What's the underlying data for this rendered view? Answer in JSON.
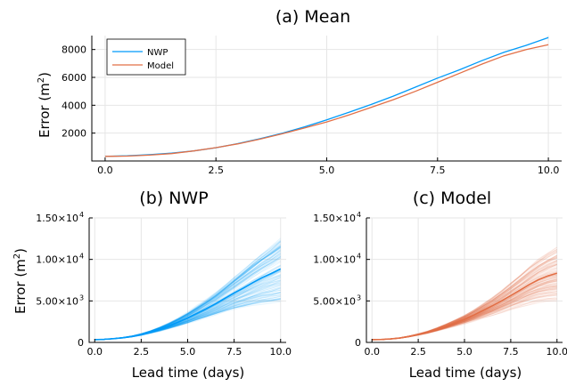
{
  "chart_data": [
    {
      "type": "line",
      "title": "(a) Mean",
      "xlabel": "",
      "ylabel": "Error (m2)",
      "ylabel_parts": {
        "text": "Error (m",
        "sup": "2",
        "close": ")"
      },
      "xlim": [
        -0.3,
        10.3
      ],
      "ylim": [
        0,
        9000
      ],
      "xticks": [
        "0.0",
        "2.5",
        "5.0",
        "7.5",
        "10.0"
      ],
      "xtick_values": [
        0,
        2.5,
        5,
        7.5,
        10
      ],
      "yticks": [
        "2000",
        "4000",
        "6000",
        "8000"
      ],
      "ytick_values": [
        2000,
        4000,
        6000,
        8000
      ],
      "grid": true,
      "legend_position": "top-left",
      "x": [
        0,
        0.5,
        1,
        1.5,
        2,
        2.5,
        3,
        3.5,
        4,
        4.5,
        5,
        5.5,
        6,
        6.5,
        7,
        7.5,
        8,
        8.5,
        9,
        9.5,
        10
      ],
      "series": [
        {
          "name": "NWP",
          "color": "#009af9",
          "values": [
            330,
            370,
            450,
            560,
            720,
            950,
            1250,
            1600,
            2000,
            2450,
            2950,
            3500,
            4050,
            4650,
            5300,
            5950,
            6550,
            7200,
            7800,
            8300,
            8850
          ]
        },
        {
          "name": "Model",
          "color": "#e26f46",
          "values": [
            330,
            350,
            420,
            530,
            720,
            960,
            1230,
            1570,
            1950,
            2370,
            2800,
            3300,
            3850,
            4400,
            5000,
            5650,
            6300,
            6950,
            7550,
            8000,
            8350
          ]
        }
      ]
    },
    {
      "type": "line",
      "title": "(b) NWP",
      "xlabel": "Lead time (days)",
      "ylabel": "Error (m2)",
      "ylabel_parts": {
        "text": "Error (m",
        "sup": "2",
        "close": ")"
      },
      "xlim": [
        -0.3,
        10.3
      ],
      "ylim": [
        0,
        15000
      ],
      "xticks": [
        "0.0",
        "2.5",
        "5.0",
        "7.5",
        "10.0"
      ],
      "xtick_values": [
        0,
        2.5,
        5,
        7.5,
        10
      ],
      "yticks": [
        {
          "value": 0,
          "text": "0",
          "exp": ""
        },
        {
          "value": 5000,
          "text": "5.00×10",
          "exp": "3"
        },
        {
          "value": 10000,
          "text": "1.00×10",
          "exp": "4"
        },
        {
          "value": 15000,
          "text": "1.50×10",
          "exp": "4"
        }
      ],
      "grid": true,
      "x": [
        0,
        0.5,
        1,
        1.5,
        2,
        2.5,
        3,
        3.5,
        4,
        4.5,
        5,
        5.5,
        6,
        6.5,
        7,
        7.5,
        8,
        8.5,
        9,
        9.5,
        10
      ],
      "ensemble_members": 120,
      "ensemble_spread": 0.45,
      "series": [
        {
          "name": "",
          "color": "#009af9",
          "values": [
            330,
            370,
            450,
            560,
            720,
            950,
            1250,
            1600,
            2000,
            2450,
            2950,
            3500,
            4050,
            4650,
            5300,
            5950,
            6550,
            7200,
            7800,
            8300,
            8850
          ]
        }
      ]
    },
    {
      "type": "line",
      "title": "(c) Model",
      "xlabel": "Lead time (days)",
      "ylabel": "",
      "xlim": [
        -0.3,
        10.3
      ],
      "ylim": [
        0,
        15000
      ],
      "xticks": [
        "0.0",
        "2.5",
        "5.0",
        "7.5",
        "10.0"
      ],
      "xtick_values": [
        0,
        2.5,
        5,
        7.5,
        10
      ],
      "yticks": [
        {
          "value": 0,
          "text": "0",
          "exp": ""
        },
        {
          "value": 5000,
          "text": "5.00×10",
          "exp": "3"
        },
        {
          "value": 10000,
          "text": "1.00×10",
          "exp": "4"
        },
        {
          "value": 15000,
          "text": "1.50×10",
          "exp": "4"
        }
      ],
      "grid": true,
      "x": [
        0,
        0.5,
        1,
        1.5,
        2,
        2.5,
        3,
        3.5,
        4,
        4.5,
        5,
        5.5,
        6,
        6.5,
        7,
        7.5,
        8,
        8.5,
        9,
        9.5,
        10
      ],
      "ensemble_members": 120,
      "ensemble_spread": 0.4,
      "series": [
        {
          "name": "",
          "color": "#e26f46",
          "values": [
            330,
            350,
            420,
            530,
            720,
            960,
            1230,
            1570,
            1950,
            2370,
            2800,
            3300,
            3850,
            4400,
            5000,
            5650,
            6300,
            6950,
            7550,
            8000,
            8350
          ]
        }
      ]
    }
  ]
}
